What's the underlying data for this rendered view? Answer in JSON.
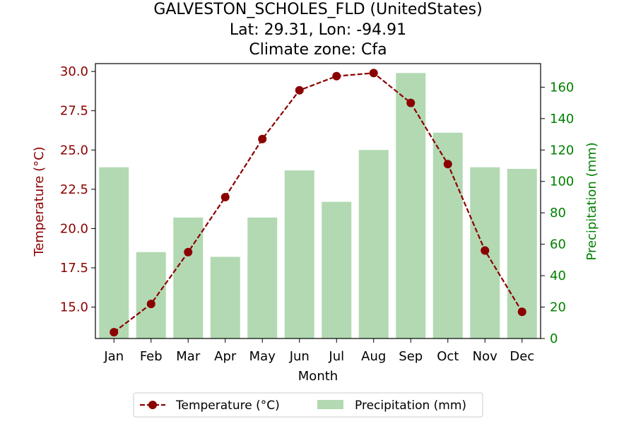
{
  "title": {
    "line1": "GALVESTON_SCHOLES_FLD (UnitedStates)",
    "line2": "Lat: 29.31, Lon: -94.91",
    "line3": "Climate zone: Cfa"
  },
  "colors": {
    "temperature": "#8b0000",
    "precipitation": "#b2d9b2",
    "right_axis": "#008000"
  },
  "chart_data": {
    "type": "bar",
    "categories": [
      "Jan",
      "Feb",
      "Mar",
      "Apr",
      "May",
      "Jun",
      "Jul",
      "Aug",
      "Sep",
      "Oct",
      "Nov",
      "Dec"
    ],
    "xlabel": "Month",
    "series": [
      {
        "name": "Temperature (°C)",
        "type": "line",
        "axis": "left",
        "values": [
          13.4,
          15.2,
          18.5,
          22.0,
          25.7,
          28.8,
          29.7,
          29.9,
          28.0,
          24.1,
          18.6,
          14.7
        ]
      },
      {
        "name": "Precipitation (mm)",
        "type": "bar",
        "axis": "right",
        "values": [
          109,
          55,
          77,
          52,
          77,
          107,
          87,
          120,
          169,
          131,
          109,
          108
        ]
      }
    ],
    "y_left": {
      "label": "Temperature (°C)",
      "ylim": [
        13.0,
        30.5
      ],
      "ticks": [
        15.0,
        17.5,
        20.0,
        22.5,
        25.0,
        27.5,
        30.0
      ],
      "tick_labels": [
        "15.0",
        "17.5",
        "20.0",
        "22.5",
        "25.0",
        "27.5",
        "30.0"
      ]
    },
    "y_right": {
      "label": "Precipitation (mm)",
      "ylim": [
        0,
        175
      ],
      "ticks": [
        0,
        20,
        40,
        60,
        80,
        100,
        120,
        140,
        160
      ],
      "tick_labels": [
        "0",
        "20",
        "40",
        "60",
        "80",
        "100",
        "120",
        "140",
        "160"
      ]
    },
    "grid": false,
    "legend": {
      "position": "bottom-center",
      "entries": [
        "Temperature (°C)",
        "Precipitation (mm)"
      ]
    }
  }
}
